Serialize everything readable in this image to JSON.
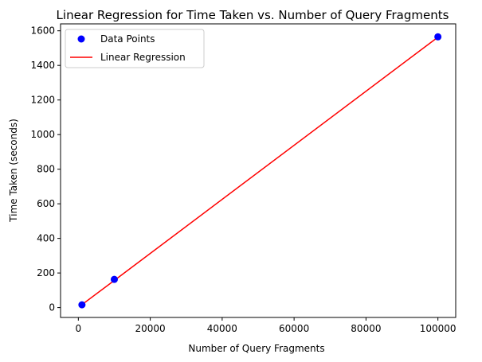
{
  "chart_data": {
    "type": "scatter",
    "title": "Linear Regression for Time Taken vs. Number of Query Fragments",
    "xlabel": "Number of Query Fragments",
    "ylabel": "Time Taken (seconds)",
    "xlim": [
      -4950,
      104950
    ],
    "ylim": [
      -57,
      1640
    ],
    "xticks": [
      0,
      20000,
      40000,
      60000,
      80000,
      100000
    ],
    "xtick_labels": [
      "0",
      "20000",
      "40000",
      "60000",
      "80000",
      "100000"
    ],
    "yticks": [
      0,
      200,
      400,
      600,
      800,
      1000,
      1200,
      1400,
      1600
    ],
    "ytick_labels": [
      "0",
      "200",
      "400",
      "600",
      "800",
      "1000",
      "1200",
      "1400",
      "1600"
    ],
    "grid": false,
    "legend_position": "top-left",
    "series": [
      {
        "name": "Data Points",
        "kind": "scatter",
        "color": "#0000ff",
        "x": [
          1000,
          10000,
          100000
        ],
        "y": [
          16,
          163,
          1565
        ]
      },
      {
        "name": "Linear Regression",
        "kind": "line",
        "color": "#ff0000",
        "x": [
          1000,
          10000,
          100000
        ],
        "y": [
          17,
          157,
          1563
        ]
      }
    ]
  }
}
